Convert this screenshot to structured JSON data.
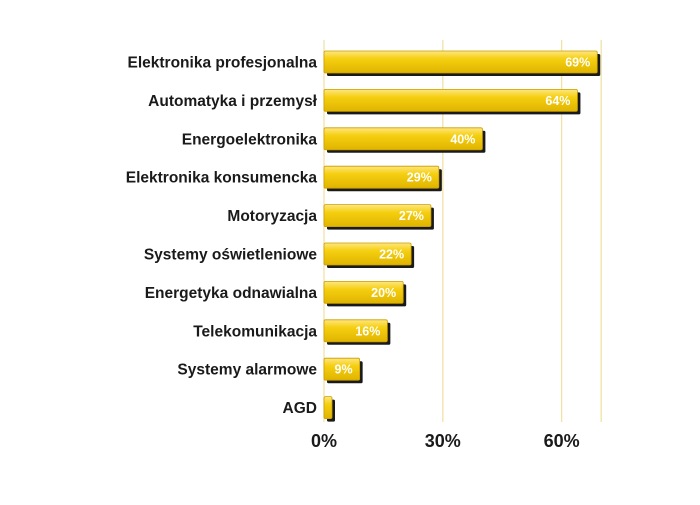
{
  "chart_data": {
    "type": "bar",
    "orientation": "horizontal",
    "title": "",
    "xlabel": "",
    "ylabel": "",
    "categories": [
      "Elektronika profesjonalna",
      "Automatyka i przemysł",
      "Energoelektronika",
      "Elektronika konsumencka",
      "Motoryzacja",
      "Systemy oświetleniowe",
      "Energetyka odnawialna",
      "Telekomunikacja",
      "Systemy alarmowe",
      "AGD"
    ],
    "values": [
      69,
      64,
      40,
      29,
      27,
      22,
      20,
      16,
      9,
      2
    ],
    "value_labels": [
      "69%",
      "64%",
      "40%",
      "29%",
      "27%",
      "22%",
      "20%",
      "16%",
      "9%",
      ""
    ],
    "x_ticks": [
      0,
      30,
      60
    ],
    "x_tick_labels": [
      "0%",
      "30%",
      "60%"
    ],
    "xlim": [
      0,
      70
    ],
    "grid": true,
    "legend": "none",
    "colors": {
      "bar_fill": "#f2c800",
      "bar_top": "#ffe066",
      "bar_shadow": "#1a1a1a",
      "gridline": "#f0e2a8",
      "label_text": "#1a1a1a",
      "value_text": "#ffffff"
    }
  }
}
